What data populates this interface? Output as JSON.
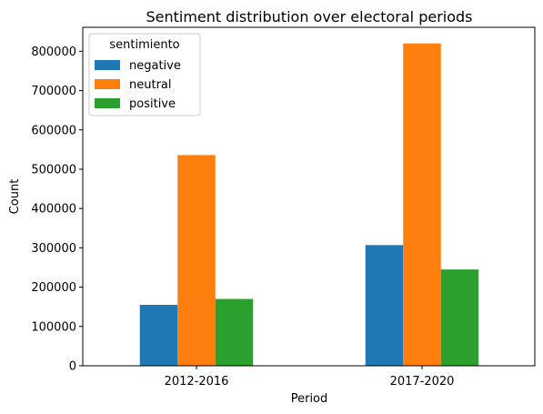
{
  "chart_data": {
    "type": "bar",
    "title": "Sentiment distribution over electoral periods",
    "xlabel": "Period",
    "ylabel": "Count",
    "categories": [
      "2012-2016",
      "2017-2020"
    ],
    "series": [
      {
        "name": "negative",
        "values": [
          155000,
          307000
        ],
        "color": "#1f77b4"
      },
      {
        "name": "neutral",
        "values": [
          536000,
          820000
        ],
        "color": "#ff7f0e"
      },
      {
        "name": "positive",
        "values": [
          170000,
          245000
        ],
        "color": "#2ca02c"
      }
    ],
    "ylim": [
      0,
      861000
    ],
    "yticks": [
      0,
      100000,
      200000,
      300000,
      400000,
      500000,
      600000,
      700000,
      800000
    ],
    "ytick_labels": [
      "0",
      "100000",
      "200000",
      "300000",
      "400000",
      "500000",
      "600000",
      "700000",
      "800000"
    ],
    "legend": {
      "title": "sentimiento",
      "position": "top-left"
    },
    "grid": false
  }
}
